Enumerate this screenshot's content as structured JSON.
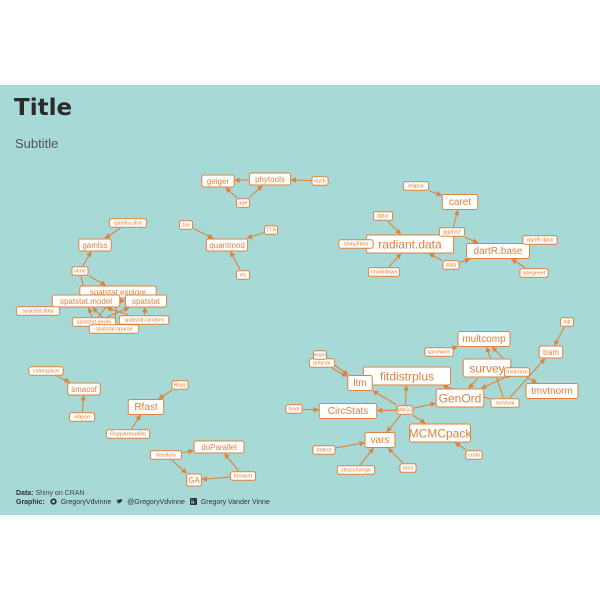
{
  "header": {
    "title": "Title",
    "subtitle": "Subtitle"
  },
  "caption": {
    "data_label": "Data:",
    "data_value": "Shiny on CRAN",
    "graphic_label": "Graphic:",
    "github": "GregoryVdvinne",
    "twitter": "@GregoryVdvinne",
    "linkedin": "Gregory Vander Vinne"
  },
  "colors": {
    "panel": "#a7dad6",
    "accent": "#e0813c",
    "node_fill": "#ffffff",
    "title": "#2b2b2b"
  },
  "nodes": [
    {
      "id": "geiger",
      "label": "geiger",
      "size": "m"
    },
    {
      "id": "phytools",
      "label": "phytools",
      "size": "m"
    },
    {
      "id": "ape",
      "label": "ape",
      "size": "s"
    },
    {
      "id": "ouch",
      "label": "ouch",
      "size": "s"
    },
    {
      "id": "quantmod",
      "label": "quantmod",
      "size": "m"
    },
    {
      "id": "ttr",
      "label": "TTR",
      "size": "s"
    },
    {
      "id": "zoo",
      "label": "zoo",
      "size": "s"
    },
    {
      "id": "xts",
      "label": "xts",
      "size": "s"
    },
    {
      "id": "gamlss",
      "label": "gamlss",
      "size": "m"
    },
    {
      "id": "gamlssdist",
      "label": "gamlss.dist",
      "size": "s"
    },
    {
      "id": "nlme",
      "label": "nlme",
      "size": "s"
    },
    {
      "id": "spexplore",
      "label": "spatstat.explore",
      "size": "m"
    },
    {
      "id": "spmodel",
      "label": "spatstat.model",
      "size": "m"
    },
    {
      "id": "spstat",
      "label": "spatstat",
      "size": "m"
    },
    {
      "id": "spdata",
      "label": "spatstat.data",
      "size": "s"
    },
    {
      "id": "sprandom",
      "label": "spatstat.random",
      "size": "s"
    },
    {
      "id": "spgeom",
      "label": "spatstat.geom",
      "size": "s"
    },
    {
      "id": "spsparse",
      "label": "spatstat.sparse",
      "size": "s"
    },
    {
      "id": "caret",
      "label": "caret",
      "size": "l"
    },
    {
      "id": "ellipse",
      "label": "ellipse",
      "size": "s"
    },
    {
      "id": "radiant",
      "label": "radiant.data",
      "size": "xl"
    },
    {
      "id": "dartr",
      "label": "dartR.base",
      "size": "l"
    },
    {
      "id": "dplyr",
      "label": "dplyr",
      "size": "s"
    },
    {
      "id": "shinyfiles",
      "label": "shinyFiles",
      "size": "s"
    },
    {
      "id": "ggplot2",
      "label": "ggplot2",
      "size": "s"
    },
    {
      "id": "data",
      "label": "data",
      "size": "s"
    },
    {
      "id": "rmarkdown",
      "label": "rmarkdown",
      "size": "s"
    },
    {
      "id": "dartrdata",
      "label": "dartR.data",
      "size": "s"
    },
    {
      "id": "adegenet",
      "label": "adegenet",
      "size": "s"
    },
    {
      "id": "smacof",
      "label": "smacof",
      "size": "m"
    },
    {
      "id": "colorspace",
      "label": "colorspace",
      "size": "s"
    },
    {
      "id": "ellipse2",
      "label": "ellipse",
      "size": "s"
    },
    {
      "id": "rfast",
      "label": "Rfast",
      "size": "l"
    },
    {
      "id": "rcpp",
      "label": "Rcpp",
      "size": "s"
    },
    {
      "id": "rcpparmadillo",
      "label": "RcppArmadillo",
      "size": "s"
    },
    {
      "id": "doparallel",
      "label": "doParallel",
      "size": "m"
    },
    {
      "id": "ga",
      "label": "GA",
      "size": "m"
    },
    {
      "id": "iterators",
      "label": "iterators",
      "size": "s"
    },
    {
      "id": "foreach",
      "label": "foreach",
      "size": "s"
    },
    {
      "id": "multcomp",
      "label": "multcomp",
      "size": "l"
    },
    {
      "id": "tram",
      "label": "tram",
      "size": "m"
    },
    {
      "id": "mlt",
      "label": "mlt",
      "size": "s"
    },
    {
      "id": "survey",
      "label": "survey",
      "size": "xl"
    },
    {
      "id": "tmvtnorm",
      "label": "tmvtnorm",
      "size": "l"
    },
    {
      "id": "fitdistrplus",
      "label": "fitdistrplus",
      "size": "xl"
    },
    {
      "id": "ltm",
      "label": "ltm",
      "size": "l"
    },
    {
      "id": "genord",
      "label": "GenOrd",
      "size": "xl"
    },
    {
      "id": "circstats",
      "label": "CircStats",
      "size": "l"
    },
    {
      "id": "mcmcpack",
      "label": "MCMCpack",
      "size": "xl"
    },
    {
      "id": "vars",
      "label": "vars",
      "size": "l"
    },
    {
      "id": "mvtnorm",
      "label": "mvtnorm",
      "size": "s"
    },
    {
      "id": "mass",
      "label": "MASS",
      "size": "s"
    },
    {
      "id": "sandwich",
      "label": "sandwich",
      "size": "s"
    },
    {
      "id": "coda",
      "label": "coda",
      "size": "s"
    },
    {
      "id": "boot",
      "label": "boot",
      "size": "s"
    },
    {
      "id": "polycor",
      "label": "polycor",
      "size": "s"
    },
    {
      "id": "survival",
      "label": "survival",
      "size": "s"
    },
    {
      "id": "rlib",
      "label": "lmtest",
      "size": "s"
    },
    {
      "id": "strucchange",
      "label": "strucchange",
      "size": "s"
    },
    {
      "id": "urca",
      "label": "urca",
      "size": "s"
    },
    {
      "id": "msm",
      "label": "msm",
      "size": "s"
    }
  ],
  "edges": [
    [
      "phytools",
      "geiger"
    ],
    [
      "ape",
      "geiger"
    ],
    [
      "ape",
      "phytools"
    ],
    [
      "ouch",
      "phytools"
    ],
    [
      "ttr",
      "quantmod"
    ],
    [
      "zoo",
      "quantmod"
    ],
    [
      "xts",
      "quantmod"
    ],
    [
      "gamlssdist",
      "gamlss"
    ],
    [
      "nlme",
      "gamlss"
    ],
    [
      "nlme",
      "spexplore"
    ],
    [
      "nlme",
      "spmodel"
    ],
    [
      "spexplore",
      "spmodel"
    ],
    [
      "spexplore",
      "spstat"
    ],
    [
      "spmodel",
      "spstat"
    ],
    [
      "spdata",
      "spmodel"
    ],
    [
      "spdata",
      "spexplore"
    ],
    [
      "sprandom",
      "spmodel"
    ],
    [
      "sprandom",
      "spstat"
    ],
    [
      "spgeom",
      "spmodel"
    ],
    [
      "spgeom",
      "spexplore"
    ],
    [
      "spgeom",
      "spstat"
    ],
    [
      "spsparse",
      "spmodel"
    ],
    [
      "spsparse",
      "spexplore"
    ],
    [
      "ellipse",
      "caret"
    ],
    [
      "ggplot2",
      "caret"
    ],
    [
      "ggplot2",
      "dartr"
    ],
    [
      "dplyr",
      "radiant"
    ],
    [
      "shinyfiles",
      "radiant"
    ],
    [
      "rmarkdown",
      "radiant"
    ],
    [
      "data",
      "radiant"
    ],
    [
      "data",
      "dartr"
    ],
    [
      "dartrdata",
      "dartr"
    ],
    [
      "adegenet",
      "dartr"
    ],
    [
      "colorspace",
      "smacof"
    ],
    [
      "ellipse2",
      "smacof"
    ],
    [
      "rcpp",
      "rfast"
    ],
    [
      "rcpparmadillo",
      "rfast"
    ],
    [
      "iterators",
      "doparallel"
    ],
    [
      "foreach",
      "doparallel"
    ],
    [
      "foreach",
      "ga"
    ],
    [
      "iterators",
      "ga"
    ],
    [
      "mlt",
      "tram"
    ],
    [
      "mvtnorm",
      "multcomp"
    ],
    [
      "mvtnorm",
      "survey"
    ],
    [
      "mvtnorm",
      "tmvtnorm"
    ],
    [
      "mvtnorm",
      "genord"
    ],
    [
      "sandwich",
      "multcomp"
    ],
    [
      "survival",
      "multcomp"
    ],
    [
      "survival",
      "tram"
    ],
    [
      "survival",
      "fitdistrplus"
    ],
    [
      "mass",
      "fitdistrplus"
    ],
    [
      "mass",
      "circstats"
    ],
    [
      "mass",
      "ltm"
    ],
    [
      "mass",
      "vars"
    ],
    [
      "mass",
      "mcmcpack"
    ],
    [
      "mass",
      "genord"
    ],
    [
      "boot",
      "circstats"
    ],
    [
      "polycor",
      "ltm"
    ],
    [
      "coda",
      "mcmcpack"
    ],
    [
      "rlib",
      "vars"
    ],
    [
      "strucchange",
      "vars"
    ],
    [
      "urca",
      "vars"
    ],
    [
      "msm",
      "ltm"
    ],
    [
      "survey",
      "genord"
    ],
    [
      "mvtnorm",
      "mvtnorm"
    ]
  ]
}
